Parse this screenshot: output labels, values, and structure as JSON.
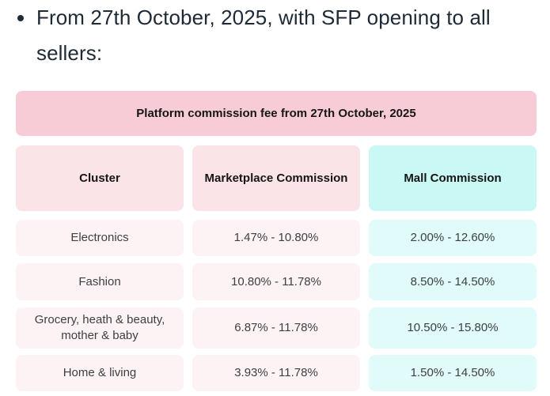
{
  "intro": {
    "bullet_text": "From 27th October, 2025, with SFP opening to all sellers:"
  },
  "table": {
    "title": "Platform commission fee from 27th October, 2025",
    "columns": [
      "Cluster",
      "Marketplace Commission",
      "Mall Commission"
    ],
    "rows": [
      {
        "cluster": "Electronics",
        "marketplace_commission": "1.47% - 10.80%",
        "mall_commission": "2.00% - 12.60%"
      },
      {
        "cluster": "Fashion",
        "marketplace_commission": "10.80% - 11.78%",
        "mall_commission": "8.50% - 14.50%"
      },
      {
        "cluster": "Grocery, heath & beauty, mother & baby",
        "marketplace_commission": "6.87% - 11.78%",
        "mall_commission": "10.50% - 15.80%"
      },
      {
        "cluster": "Home & living",
        "marketplace_commission": "3.93% - 11.78%",
        "mall_commission": "1.50% - 14.50%"
      }
    ]
  },
  "colors": {
    "title_bar_pink": "#f8ccd6",
    "column_header_pink": "#fbe4e8",
    "column_header_cyan": "#c9f8f5",
    "row_pink": "#fdf3f5",
    "row_cyan": "#e0fbf9",
    "text_dark": "#1f2a37",
    "header_text": "#161616",
    "cell_text": "#3d4043"
  }
}
